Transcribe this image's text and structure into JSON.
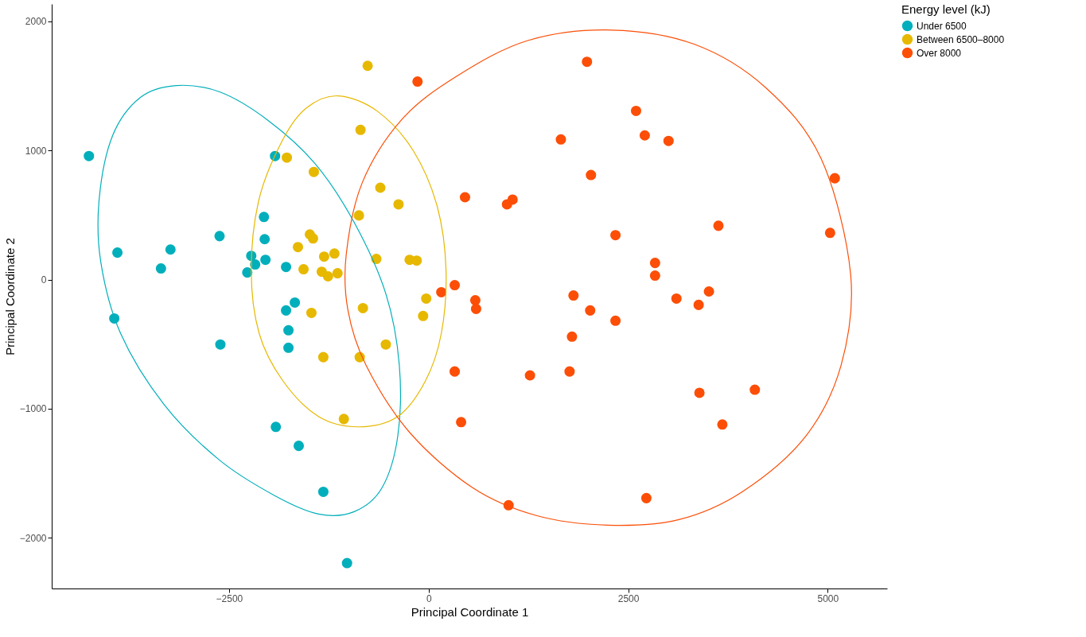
{
  "chart_data": {
    "type": "scatter",
    "xlabel": "Principal Coordinate 1",
    "ylabel": "Principal Coordinate 2",
    "legend_title": "Energy level (kJ)",
    "xlim": [
      -4722,
      5744
    ],
    "ylim": [
      -2393,
      2135
    ],
    "xticks": [
      -2500,
      0,
      2500,
      5000
    ],
    "yticks": [
      -2000,
      -1000,
      0,
      1000,
      2000
    ],
    "grid": false,
    "legend": "right",
    "marker": "circle",
    "series": [
      {
        "name": "Under 6500",
        "color": "#00afbb",
        "x": [
          -4256,
          -3899,
          -3938,
          -3353,
          -3234,
          -2619,
          -2609,
          -2272,
          -2222,
          -2173,
          -2054,
          -2044,
          -2063,
          -1924,
          -1786,
          -1786,
          -1756,
          -1756,
          -1676,
          -1914,
          -1627,
          -1319,
          -1022
        ],
        "values": [
          957,
          209,
          -301,
          86,
          233,
          337,
          -503,
          55,
          184,
          117,
          313,
          153,
          485,
          957,
          98,
          -239,
          -393,
          -528,
          -178,
          -1141,
          -1288,
          -1644,
          -2196
        ]
      },
      {
        "name": "Between 6500–8000",
        "color": "#e7b800",
        "x": [
          -764,
          -853,
          -1776,
          -1438,
          -605,
          -377,
          -873,
          -1488,
          -1448,
          -1637,
          -1309,
          -1180,
          -655,
          -238,
          -149,
          -1567,
          -1339,
          -1260,
          -1141,
          -30,
          -69,
          -1468,
          -823,
          -536,
          -1319,
          -863,
          -1062
        ],
        "values": [
          1656,
          1160,
          945,
          834,
          712,
          583,
          497,
          350,
          319,
          252,
          178,
          202,
          160,
          153,
          147,
          80,
          61,
          25,
          49,
          -147,
          -282,
          -258,
          -221,
          -503,
          -601,
          -601,
          -1080
        ]
      },
      {
        "name": "Over 8000",
        "color": "#fc4e07",
        "x": [
          -139,
          1984,
          2599,
          2708,
          3006,
          1657,
          2034,
          5089,
          456,
          982,
          1052,
          2341,
          3631,
          5030,
          2837,
          2837,
          327,
          159,
          585,
          595,
          1815,
          2024,
          1796,
          2341,
          3105,
          3383,
          3512,
          327,
          1270,
          1766,
          3393,
          4087,
          3680,
          407,
          2728,
          1002
        ],
        "values": [
          1534,
          1687,
          1307,
          1117,
          1074,
          1086,
          810,
          785,
          638,
          583,
          620,
          344,
          417,
          362,
          129,
          31,
          -43,
          -98,
          -160,
          -227,
          -123,
          -239,
          -442,
          -319,
          -147,
          -196,
          -92,
          -712,
          -742,
          -712,
          -877,
          -853,
          -1123,
          -1104,
          -1693,
          -1748
        ]
      }
    ]
  }
}
